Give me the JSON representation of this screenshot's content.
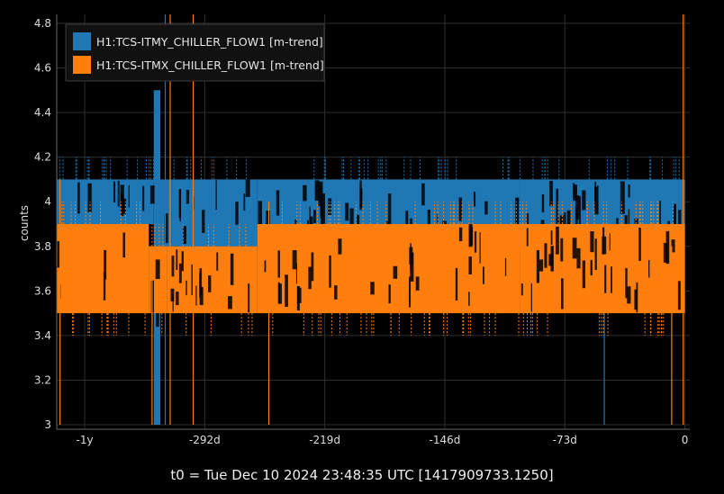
{
  "chart_data": {
    "type": "line",
    "xlabel": "",
    "ylabel": "counts",
    "footer": "t0 = Tue Dec 10 2024 23:48:35 UTC [1417909733.1250]",
    "xlim": [
      -382,
      3
    ],
    "ylim": [
      2.98,
      4.84
    ],
    "x_unit": "days relative to t0",
    "x_ticks": [
      {
        "value": -365,
        "label": "-1y"
      },
      {
        "value": -292,
        "label": "-292d"
      },
      {
        "value": -219,
        "label": "-219d"
      },
      {
        "value": -146,
        "label": "-146d"
      },
      {
        "value": -73,
        "label": "-73d"
      },
      {
        "value": 0,
        "label": "0"
      }
    ],
    "y_ticks": [
      {
        "value": 3.0,
        "label": "3"
      },
      {
        "value": 3.2,
        "label": "3.2"
      },
      {
        "value": 3.4,
        "label": "3.4"
      },
      {
        "value": 3.6,
        "label": "3.6"
      },
      {
        "value": 3.8,
        "label": "3.8"
      },
      {
        "value": 4.0,
        "label": "4"
      },
      {
        "value": 4.2,
        "label": "4.2"
      },
      {
        "value": 4.4,
        "label": "4.4"
      },
      {
        "value": 4.6,
        "label": "4.6"
      },
      {
        "value": 4.8,
        "label": "4.8"
      }
    ],
    "grid": true,
    "legend_position": "top-left",
    "colors": {
      "background": "#000000",
      "grid": "#2e2e2e",
      "itmy": "#1f77b4",
      "itmx": "#ff7f0e"
    },
    "series": [
      {
        "name": "H1:TCS-ITMY_CHILLER_FLOW1 [m-trend]",
        "color": "#1f77b4",
        "band_min_max": [
          {
            "x_range": [
              -382,
              -323
            ],
            "min": 3.9,
            "max": 4.1
          },
          {
            "x_range": [
              -323,
              -319
            ],
            "min": 3.0,
            "max": 4.5
          },
          {
            "x_range": [
              -319,
              -312
            ],
            "min": 3.8,
            "max": 4.1
          },
          {
            "x_range": [
              -312,
              -260
            ],
            "min": 3.8,
            "max": 4.1
          },
          {
            "x_range": [
              -260,
              -100
            ],
            "min": 3.8,
            "max": 4.1
          },
          {
            "x_range": [
              -100,
              0
            ],
            "min": 3.8,
            "max": 4.1
          }
        ],
        "spikes": [
          {
            "x": -322,
            "min": 3.0,
            "max": 4.5
          },
          {
            "x": -316,
            "min": 3.0,
            "max": 4.85
          },
          {
            "x": -49,
            "min": 3.0,
            "max": 3.6
          }
        ]
      },
      {
        "name": "H1:TCS-ITMX_CHILLER_FLOW1 [m-trend]",
        "color": "#ff7f0e",
        "band_min_max": [
          {
            "x_range": [
              -382,
              -326
            ],
            "min": 3.5,
            "max": 3.9
          },
          {
            "x_range": [
              -326,
              -315
            ],
            "min": 3.5,
            "max": 3.8
          },
          {
            "x_range": [
              -315,
              -260
            ],
            "min": 3.5,
            "max": 3.8
          },
          {
            "x_range": [
              -260,
              -100
            ],
            "min": 3.5,
            "max": 3.9
          },
          {
            "x_range": [
              -100,
              0
            ],
            "min": 3.5,
            "max": 3.9
          }
        ],
        "spikes": [
          {
            "x": -380,
            "min": 3.0,
            "max": 4.1
          },
          {
            "x": -324,
            "min": 3.0,
            "max": 3.8
          },
          {
            "x": -313,
            "min": 3.0,
            "max": 4.85
          },
          {
            "x": -299,
            "min": 3.0,
            "max": 4.85
          },
          {
            "x": -253,
            "min": 3.0,
            "max": 4.0
          },
          {
            "x": -8,
            "min": 3.0,
            "max": 3.8
          },
          {
            "x": -1,
            "min": 3.0,
            "max": 4.85
          }
        ]
      }
    ]
  }
}
